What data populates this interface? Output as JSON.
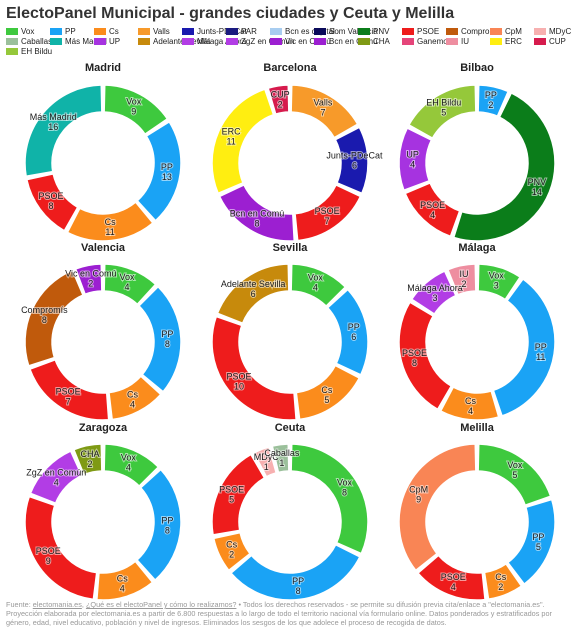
{
  "title": "ElectoPanel Municipal - grandes ciudades y Ceuta y Melilla",
  "legend": [
    {
      "name": "Vox",
      "color": "#3ec93e"
    },
    {
      "name": "PP",
      "color": "#1aa3f5"
    },
    {
      "name": "Cs",
      "color": "#fb8c1c"
    },
    {
      "name": "Valls",
      "color": "#f79a2a"
    },
    {
      "name": "Junts-PDeCat",
      "color": "#1a1aae"
    },
    {
      "name": "PAR",
      "color": "#1a1a80"
    },
    {
      "name": "Bcn es capital",
      "color": "#a8cdf0"
    },
    {
      "name": "Som Valencià",
      "color": "#0a0a5a"
    },
    {
      "name": "PNV",
      "color": "#0b7d1a"
    },
    {
      "name": "PSOE",
      "color": "#ee1c1c"
    },
    {
      "name": "Compromís",
      "color": "#c05a0c"
    },
    {
      "name": "CpM",
      "color": "#f98555"
    },
    {
      "name": "MDyC",
      "color": "#f7b0b0"
    },
    {
      "name": "Caballas",
      "color": "#9bc09b"
    },
    {
      "name": "Más Madrid",
      "color": "#10b3a8"
    },
    {
      "name": "UP",
      "color": "#a633e0"
    },
    {
      "name": "Adelante Sevilla",
      "color": "#c78a0c"
    },
    {
      "name": "Málaga Ahora",
      "color": "#b23de5"
    },
    {
      "name": "ZgZ en Común",
      "color": "#b23de5"
    },
    {
      "name": "Vic en Comú",
      "color": "#9c1fd1"
    },
    {
      "name": "Bcn en Comú",
      "color": "#9c1fd1"
    },
    {
      "name": "CHA",
      "color": "#7f9a14"
    },
    {
      "name": "Ganemos",
      "color": "#e5457a"
    },
    {
      "name": "IU",
      "color": "#ee8ea0"
    },
    {
      "name": "ERC",
      "color": "#ffee11"
    },
    {
      "name": "CUP",
      "color": "#d61b4d"
    },
    {
      "name": "EH Bildu",
      "color": "#95c83a"
    }
  ],
  "chart_data": [
    {
      "type": "pie",
      "title": "Madrid",
      "slices": [
        {
          "label": "Vox",
          "value": 9,
          "color": "#3ec93e"
        },
        {
          "label": "PP",
          "value": 13,
          "color": "#1aa3f5"
        },
        {
          "label": "Cs",
          "value": 11,
          "color": "#fb8c1c"
        },
        {
          "label": "PSOE",
          "value": 8,
          "color": "#ee1c1c"
        },
        {
          "label": "Más Madrid",
          "value": 16,
          "color": "#10b3a8"
        }
      ]
    },
    {
      "type": "pie",
      "title": "Barcelona",
      "slices": [
        {
          "label": "Valls",
          "value": 7,
          "color": "#f79a2a"
        },
        {
          "label": "Junts-PDeCat",
          "value": 6,
          "color": "#1a1aae"
        },
        {
          "label": "PSOE",
          "value": 7,
          "color": "#ee1c1c"
        },
        {
          "label": "Bcn en Comú",
          "value": 8,
          "color": "#9c1fd1"
        },
        {
          "label": "ERC",
          "value": 11,
          "color": "#ffee11"
        },
        {
          "label": "CUP",
          "value": 2,
          "color": "#d61b4d"
        }
      ]
    },
    {
      "type": "pie",
      "title": "Bilbao",
      "slices": [
        {
          "label": "PP",
          "value": 2,
          "color": "#1aa3f5"
        },
        {
          "label": "PNV",
          "value": 14,
          "color": "#0b7d1a"
        },
        {
          "label": "PSOE",
          "value": 4,
          "color": "#ee1c1c"
        },
        {
          "label": "UP",
          "value": 4,
          "color": "#a633e0"
        },
        {
          "label": "EH Bildu",
          "value": 5,
          "color": "#95c83a"
        }
      ]
    },
    {
      "type": "pie",
      "title": "Valencia",
      "slices": [
        {
          "label": "Vox",
          "value": 4,
          "color": "#3ec93e"
        },
        {
          "label": "PP",
          "value": 8,
          "color": "#1aa3f5"
        },
        {
          "label": "Cs",
          "value": 4,
          "color": "#fb8c1c"
        },
        {
          "label": "PSOE",
          "value": 7,
          "color": "#ee1c1c"
        },
        {
          "label": "Compromís",
          "value": 8,
          "color": "#c05a0c"
        },
        {
          "label": "Vic en Comú",
          "value": 2,
          "color": "#9c1fd1"
        }
      ]
    },
    {
      "type": "pie",
      "title": "Sevilla",
      "slices": [
        {
          "label": "Vox",
          "value": 4,
          "color": "#3ec93e"
        },
        {
          "label": "PP",
          "value": 6,
          "color": "#1aa3f5"
        },
        {
          "label": "Cs",
          "value": 5,
          "color": "#fb8c1c"
        },
        {
          "label": "PSOE",
          "value": 10,
          "color": "#ee1c1c"
        },
        {
          "label": "Adelante Sevilla",
          "value": 6,
          "color": "#c78a0c"
        }
      ]
    },
    {
      "type": "pie",
      "title": "Málaga",
      "slices": [
        {
          "label": "Vox",
          "value": 3,
          "color": "#3ec93e"
        },
        {
          "label": "PP",
          "value": 11,
          "color": "#1aa3f5"
        },
        {
          "label": "Cs",
          "value": 4,
          "color": "#fb8c1c"
        },
        {
          "label": "PSOE",
          "value": 8,
          "color": "#ee1c1c"
        },
        {
          "label": "Málaga Ahora",
          "value": 3,
          "color": "#b23de5"
        },
        {
          "label": "IU",
          "value": 2,
          "color": "#ee8ea0"
        }
      ]
    },
    {
      "type": "pie",
      "title": "Zaragoza",
      "slices": [
        {
          "label": "Vox",
          "value": 4,
          "color": "#3ec93e"
        },
        {
          "label": "PP",
          "value": 8,
          "color": "#1aa3f5"
        },
        {
          "label": "Cs",
          "value": 4,
          "color": "#fb8c1c"
        },
        {
          "label": "PSOE",
          "value": 9,
          "color": "#ee1c1c"
        },
        {
          "label": "ZgZ en Común",
          "value": 4,
          "color": "#b23de5"
        },
        {
          "label": "CHA",
          "value": 2,
          "color": "#7f9a14"
        }
      ]
    },
    {
      "type": "pie",
      "title": "Ceuta",
      "slices": [
        {
          "label": "Vox",
          "value": 8,
          "color": "#3ec93e"
        },
        {
          "label": "PP",
          "value": 8,
          "color": "#1aa3f5"
        },
        {
          "label": "Cs",
          "value": 2,
          "color": "#fb8c1c"
        },
        {
          "label": "PSOE",
          "value": 5,
          "color": "#ee1c1c"
        },
        {
          "label": "MDyC",
          "value": 1,
          "color": "#f7b0b0"
        },
        {
          "label": "Caballas",
          "value": 1,
          "color": "#9bc09b"
        }
      ]
    },
    {
      "type": "pie",
      "title": "Melilla",
      "slices": [
        {
          "label": "Vox",
          "value": 5,
          "color": "#3ec93e"
        },
        {
          "label": "PP",
          "value": 5,
          "color": "#1aa3f5"
        },
        {
          "label": "Cs",
          "value": 2,
          "color": "#fb8c1c"
        },
        {
          "label": "PSOE",
          "value": 4,
          "color": "#ee1c1c"
        },
        {
          "label": "CpM",
          "value": 9,
          "color": "#f98555"
        }
      ]
    }
  ],
  "footer": {
    "prefix": "Fuente: ",
    "link1": "electomania.es",
    "sep1": ", ",
    "link2": "¿Qué es el electoPanel y cómo lo realizamos?",
    "rest": " • Todos los derechos reservados - se permite su difusión previa cita/enlace a \"electomania.es\". Proyección elaborada por electomania.es a partir de 6.800 respuestas a lo largo de todo el territorio nacional vía formulario online. Datos ponderados y estratificados por género, edad, nivel educativo, población y nivel de ingresos. Eliminados los sesgos de los que adolece el proceso de recogida de datos."
  }
}
